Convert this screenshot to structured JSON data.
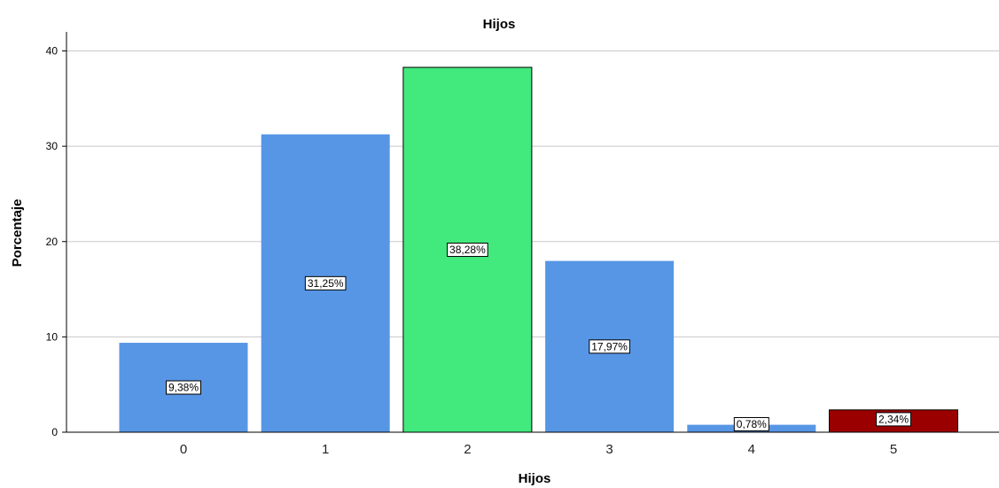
{
  "chart_data": {
    "type": "bar",
    "title": "Hijos",
    "xlabel": "Hijos",
    "ylabel": "Porcentaje",
    "categories": [
      "0",
      "1",
      "2",
      "3",
      "4",
      "5"
    ],
    "values": [
      9.38,
      31.25,
      38.28,
      17.97,
      0.78,
      2.34
    ],
    "data_labels": [
      "9,38%",
      "31,25%",
      "38,28%",
      "17,97%",
      "0,78%",
      "2,34%"
    ],
    "bar_colors": [
      "#5796e5",
      "#5796e5",
      "#42e97d",
      "#5796e5",
      "#5796e5",
      "#9b0000"
    ],
    "yticks": [
      0,
      10,
      20,
      30,
      40
    ],
    "ylim": [
      0,
      42
    ],
    "grid": true
  }
}
